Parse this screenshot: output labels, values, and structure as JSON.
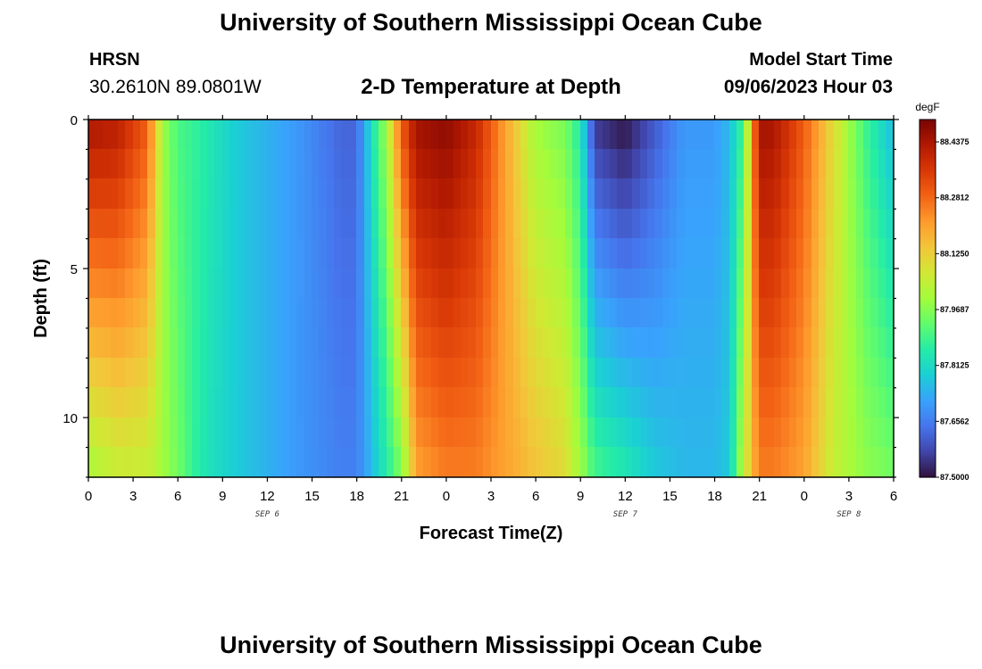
{
  "header": {
    "title": "University of Southern Mississippi Ocean Cube",
    "station": "HRSN",
    "coordinates": "30.2610N  89.0801W",
    "subtitle": "2-D Temperature at Depth",
    "model_start_label": "Model Start Time",
    "model_start_value": "09/06/2023 Hour 03"
  },
  "footer": {
    "title": "University of Southern Mississippi Ocean Cube"
  },
  "chart_data": {
    "type": "heatmap",
    "xlabel": "Forecast Time(Z)",
    "ylabel": "Depth (ft)",
    "x_tick_labels": [
      "0",
      "3",
      "6",
      "9",
      "12",
      "15",
      "18",
      "21",
      "0",
      "3",
      "6",
      "9",
      "12",
      "15",
      "18",
      "21",
      "0",
      "3",
      "6"
    ],
    "date_labels": [
      {
        "text": "SEP 6",
        "x_hours": 12
      },
      {
        "text": "SEP 7",
        "x_hours": 36
      },
      {
        "text": "SEP 8",
        "x_hours": 51
      }
    ],
    "xlim_hours": [
      0,
      54
    ],
    "ylim": [
      0,
      12
    ],
    "y_tick_labels": [
      0,
      5,
      10
    ],
    "colorbar": {
      "unit": "degF",
      "min": 87.5,
      "max": 88.5,
      "tick_labels": [
        "88.4375",
        "88.2812",
        "88.1250",
        "87.9687",
        "87.8125",
        "87.6562",
        "87.5000"
      ],
      "tick_values": [
        88.4375,
        88.28125,
        88.125,
        87.96875,
        87.8125,
        87.65625,
        87.5
      ],
      "colors": [
        "#30123b",
        "#4145ab",
        "#4675ed",
        "#39a2fc",
        "#1bcfd4",
        "#24eca6",
        "#61fc6c",
        "#a4fc3b",
        "#d1e834",
        "#f3c63a",
        "#fe9b2d",
        "#f36315",
        "#d93806",
        "#b11901",
        "#7a0403"
      ]
    },
    "temperature_profile": {
      "x_hours": [
        0,
        2,
        4,
        5,
        6,
        7,
        8,
        10,
        14,
        17,
        18,
        19,
        20,
        21,
        22,
        24,
        26,
        28,
        30,
        32,
        33,
        34,
        36,
        38,
        40,
        42,
        43,
        44,
        45,
        46,
        48,
        50,
        52,
        54
      ],
      "surface_degF": [
        88.44,
        88.42,
        88.3,
        88.0,
        87.9,
        87.88,
        87.85,
        87.78,
        87.7,
        87.62,
        87.62,
        87.82,
        88.0,
        88.3,
        88.45,
        88.48,
        88.4,
        88.2,
        88.0,
        87.95,
        87.85,
        87.55,
        87.5,
        87.6,
        87.7,
        87.7,
        87.75,
        87.9,
        88.45,
        88.44,
        88.3,
        88.1,
        87.9,
        87.75
      ],
      "bottom_degF": [
        88.0,
        88.05,
        88.05,
        88.0,
        87.95,
        87.88,
        87.83,
        87.78,
        87.7,
        87.66,
        87.66,
        87.75,
        87.85,
        87.95,
        88.2,
        88.25,
        88.25,
        88.2,
        88.15,
        88.1,
        88.0,
        87.9,
        87.85,
        87.78,
        87.75,
        87.75,
        87.78,
        88.05,
        88.25,
        88.25,
        88.2,
        88.05,
        87.98,
        87.95
      ]
    }
  }
}
